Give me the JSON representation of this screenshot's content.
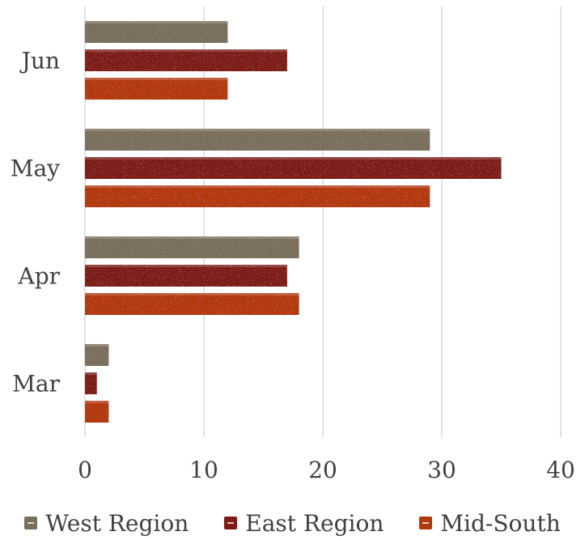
{
  "chart_data": {
    "type": "bar",
    "orientation": "horizontal",
    "categories": [
      "Mar",
      "Apr",
      "May",
      "Jun"
    ],
    "series": [
      {
        "name": "West Region",
        "values": [
          2,
          18,
          29,
          12
        ],
        "color": "#7a6e5c"
      },
      {
        "name": "East Region",
        "values": [
          1,
          17,
          35,
          17
        ],
        "color": "#7d1a12"
      },
      {
        "name": "Mid-South",
        "values": [
          2,
          18,
          29,
          12
        ],
        "color": "#b2380e"
      }
    ],
    "xticks": [
      "0",
      "10",
      "20",
      "30",
      "40"
    ],
    "xlim": [
      0,
      40
    ],
    "grid": true,
    "legend_position": "bottom"
  }
}
